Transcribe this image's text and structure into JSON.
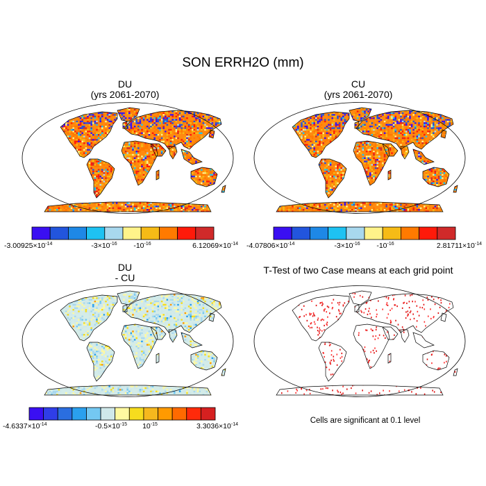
{
  "title": "SON ERRH2O (mm)",
  "panels": [
    {
      "id": "du",
      "title_line1": "DU",
      "title_line2": "(yrs 2061-2070)",
      "style": "orange"
    },
    {
      "id": "cu",
      "title_line1": "CU",
      "title_line2": "(yrs 2061-2070)",
      "style": "orange"
    },
    {
      "id": "diff",
      "title_line1": "DU",
      "title_line2": "- CU",
      "style": "diff"
    },
    {
      "id": "ttest",
      "title_line1": "T-Test of two Case means at each grid point",
      "title_line2": "",
      "style": "ttest"
    }
  ],
  "colorbars": [
    {
      "colors": [
        "#3a0ff2",
        "#2255dd",
        "#1e88e6",
        "#1ec2f2",
        "#a8d8ee",
        "#fff38a",
        "#f6bb16",
        "#ff7a00",
        "#ff1a0a",
        "#d02a2a"
      ],
      "labels": [
        {
          "text": "-3.00925×10",
          "exp": "-14"
        },
        {
          "text": "-3×10",
          "exp": "-16"
        },
        {
          "text": "-10",
          "exp": "-16"
        },
        {
          "text": "6.12069×10",
          "exp": "-14"
        }
      ]
    },
    {
      "colors": [
        "#3a0ff2",
        "#2255dd",
        "#1e88e6",
        "#1ec2f2",
        "#a8d8ee",
        "#fff38a",
        "#f6bb16",
        "#ff7a00",
        "#ff1a0a",
        "#d02a2a"
      ],
      "labels": [
        {
          "text": "-4.07806×10",
          "exp": "-14"
        },
        {
          "text": "-3×10",
          "exp": "-16"
        },
        {
          "text": "-10",
          "exp": "-16"
        },
        {
          "text": "2.81711×10",
          "exp": "-14"
        }
      ]
    },
    {
      "colors": [
        "#3a0ff2",
        "#2f3ee8",
        "#2a6ee0",
        "#2aa0ee",
        "#74c8f2",
        "#cfe8ea",
        "#fff9a0",
        "#f6dc1e",
        "#f6b81e",
        "#ff9a00",
        "#ff6a00",
        "#ff2a0a",
        "#d62020"
      ],
      "labels": [
        {
          "text": "-4.6337×10",
          "exp": "-14"
        },
        {
          "text": "-0.5×10",
          "exp": "-15"
        },
        {
          "text": "10",
          "exp": "-15"
        },
        {
          "text": "3.3036×10",
          "exp": "-14"
        }
      ]
    }
  ],
  "significance_note": "Cells are significant at 0.1 level"
}
